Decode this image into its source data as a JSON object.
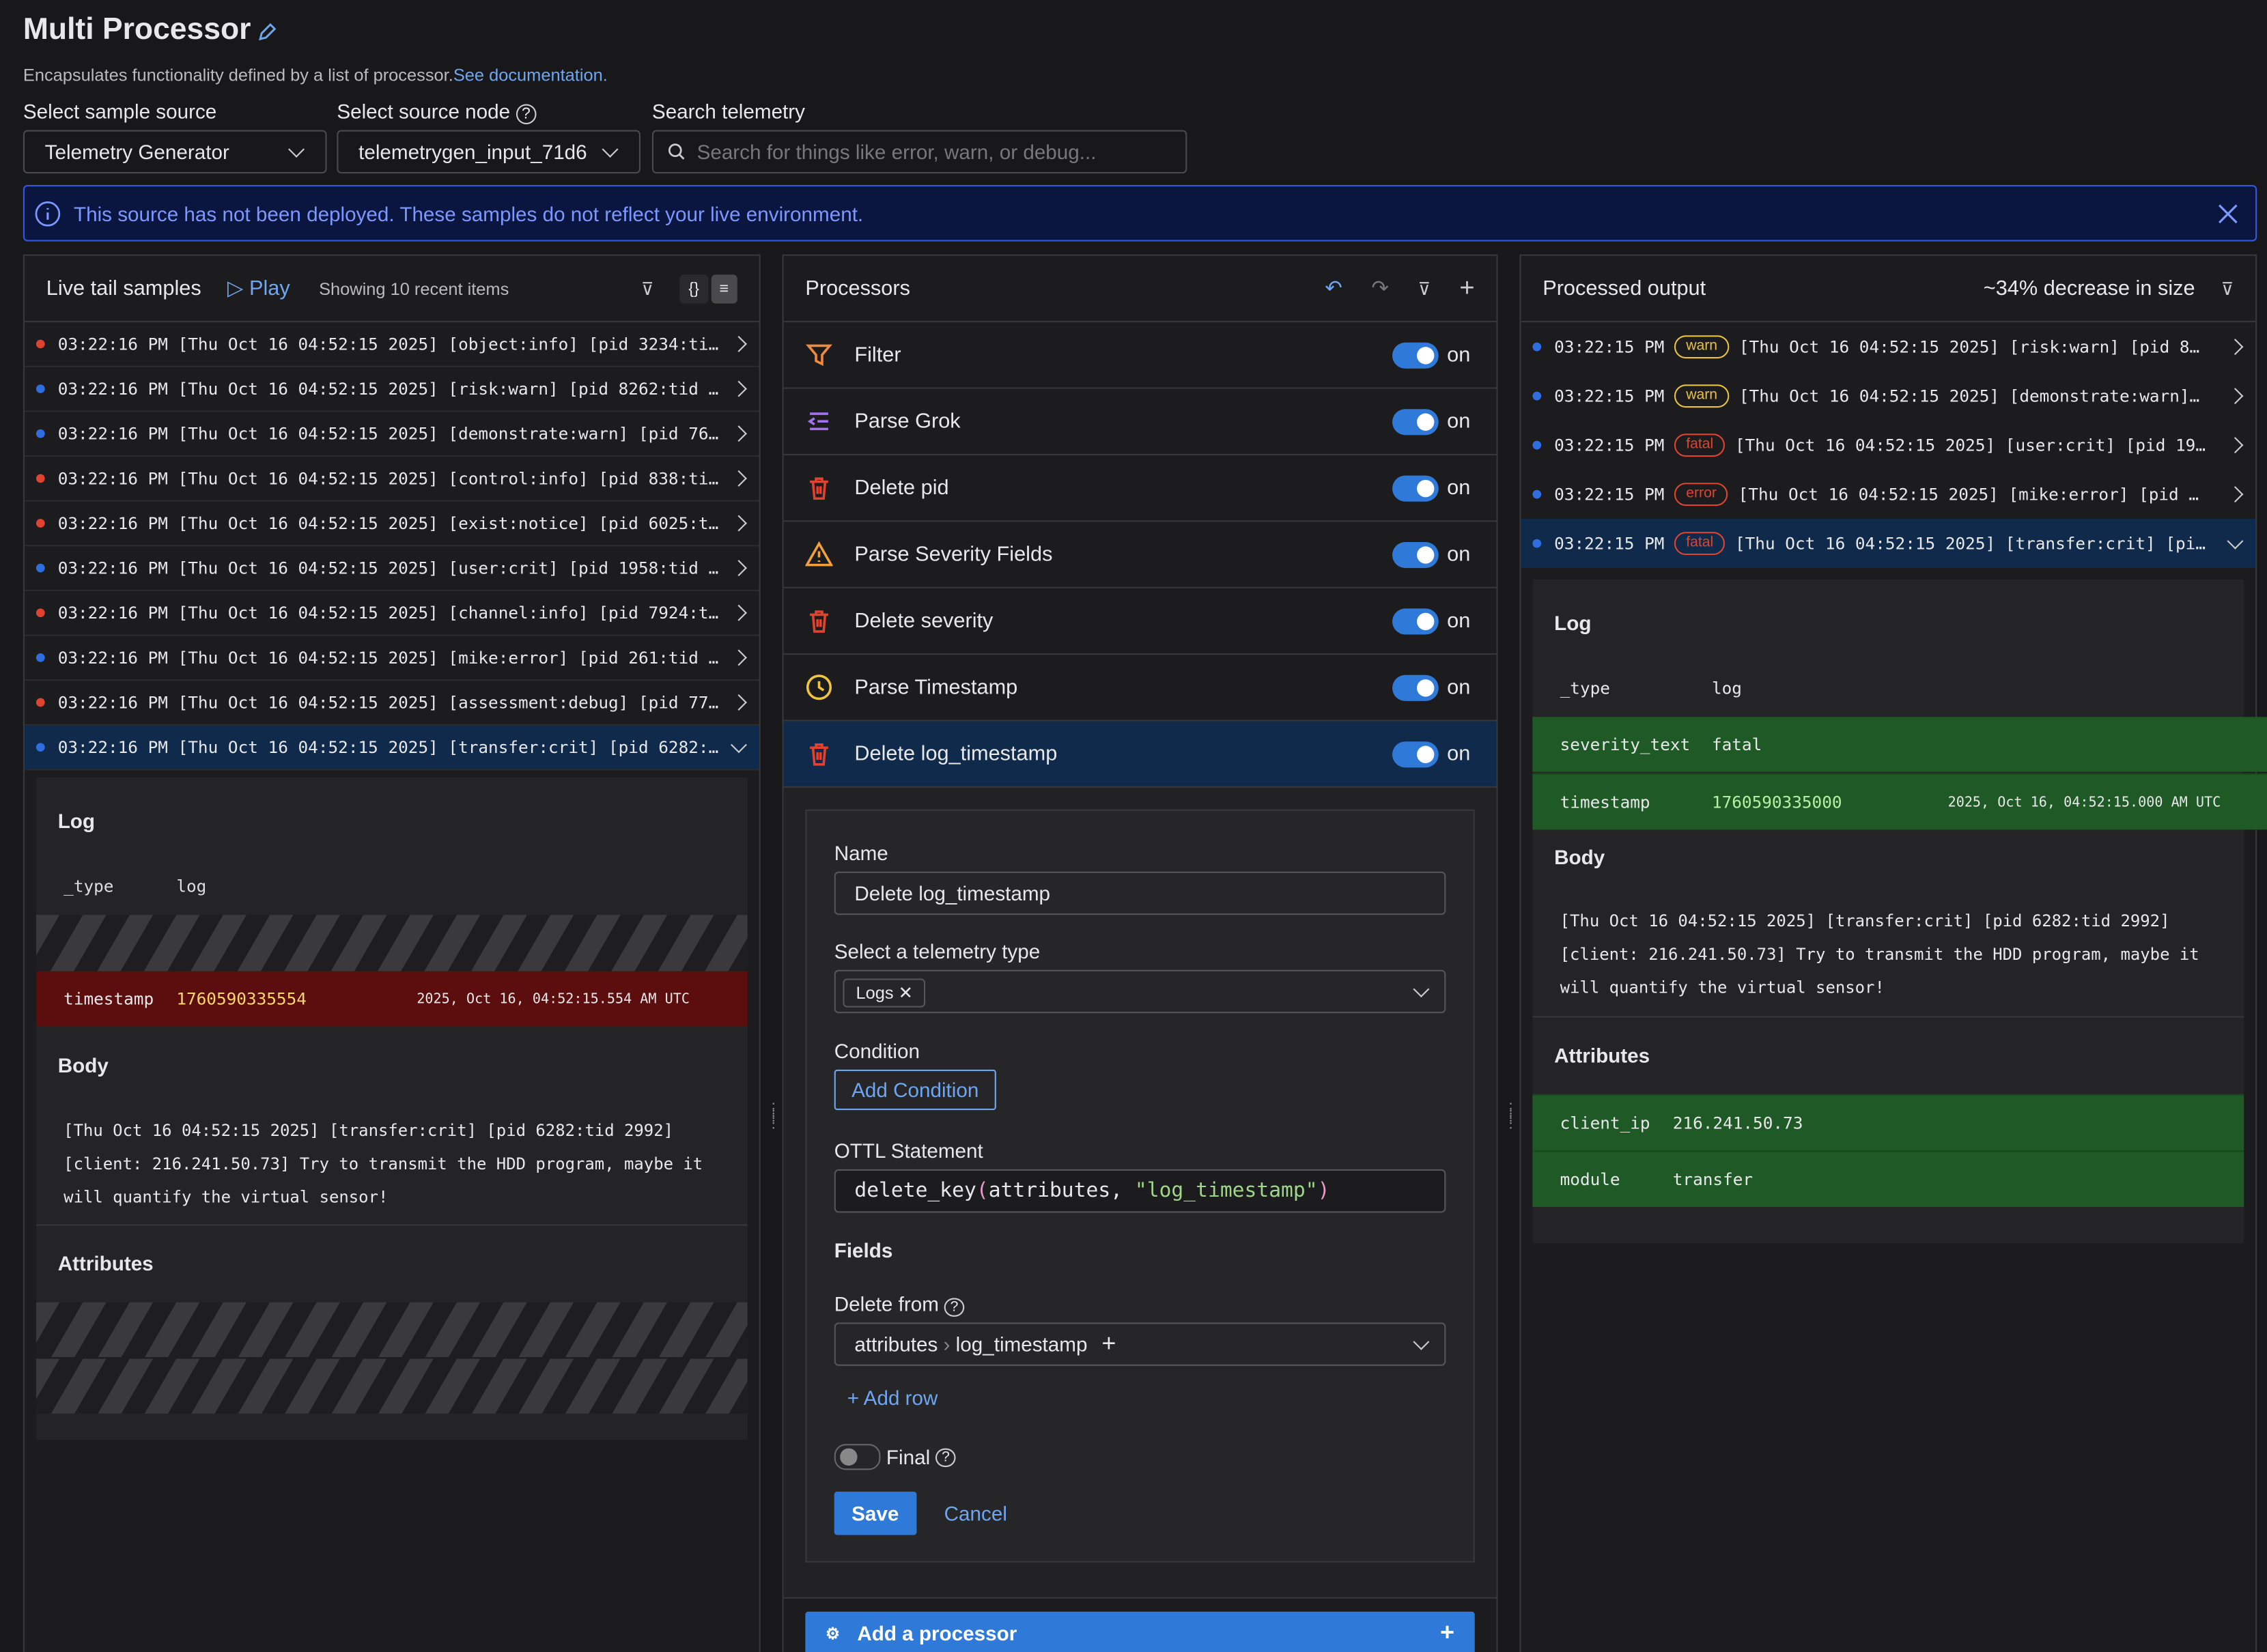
{
  "header": {
    "title": "Multi Processor",
    "description": "Encapsulates functionality defined by a list of processor.",
    "doc_link": "See documentation."
  },
  "controls": {
    "sample_source_label": "Select sample source",
    "sample_source": "Telemetry Generator",
    "source_node_label": "Select source node",
    "source_node": "telemetrygen_input_71d6",
    "search_label": "Search telemetry",
    "search_placeholder": "Search for things like error, warn, or debug..."
  },
  "banner": "This source has not been deployed. These samples do not reflect your live environment.",
  "live_tail": {
    "title": "Live tail samples",
    "play": "Play",
    "count": "Showing 10 recent items",
    "rows": [
      {
        "text": "03:22:16 PM [Thu Oct 16 04:52:15 2025] [object:info] [pid 3234:ti…",
        "dot": "#e0432f"
      },
      {
        "text": "03:22:16 PM [Thu Oct 16 04:52:15 2025] [risk:warn] [pid 8262:tid …",
        "dot": "#2f6ee0"
      },
      {
        "text": "03:22:16 PM [Thu Oct 16 04:52:15 2025] [demonstrate:warn] [pid 76…",
        "dot": "#2f6ee0"
      },
      {
        "text": "03:22:16 PM [Thu Oct 16 04:52:15 2025] [control:info] [pid 838:ti…",
        "dot": "#e0432f"
      },
      {
        "text": "03:22:16 PM [Thu Oct 16 04:52:15 2025] [exist:notice] [pid 6025:t…",
        "dot": "#e0432f"
      },
      {
        "text": "03:22:16 PM [Thu Oct 16 04:52:15 2025] [user:crit] [pid 1958:tid …",
        "dot": "#2f6ee0"
      },
      {
        "text": "03:22:16 PM [Thu Oct 16 04:52:15 2025] [channel:info] [pid 7924:t…",
        "dot": "#e0432f"
      },
      {
        "text": "03:22:16 PM [Thu Oct 16 04:52:15 2025] [mike:error] [pid 261:tid …",
        "dot": "#2f6ee0"
      },
      {
        "text": "03:22:16 PM [Thu Oct 16 04:52:15 2025] [assessment:debug] [pid 77…",
        "dot": "#e0432f"
      },
      {
        "text": "03:22:16 PM [Thu Oct 16 04:52:15 2025] [transfer:crit] [pid 6282:…",
        "dot": "#2f6ee0"
      }
    ],
    "detail": {
      "log_title": "Log",
      "type_key": "_type",
      "type_value": "log",
      "timestamp_key": "timestamp",
      "timestamp_value": "1760590335554",
      "timestamp_date": "2025, Oct 16, 04:52:15.554 AM UTC",
      "body_title": "Body",
      "body": "[Thu Oct 16 04:52:15 2025] [transfer:crit] [pid 6282:tid 2992] [client: 216.241.50.73] Try to transmit the HDD program, maybe it will quantify the virtual sensor!",
      "attributes_title": "Attributes"
    }
  },
  "processors": {
    "title": "Processors",
    "items": [
      {
        "name": "Filter",
        "state": "on",
        "icon": "filter"
      },
      {
        "name": "Parse Grok",
        "state": "on",
        "icon": "grok"
      },
      {
        "name": "Delete pid",
        "state": "on",
        "icon": "trash"
      },
      {
        "name": "Parse Severity Fields",
        "state": "on",
        "icon": "warning"
      },
      {
        "name": "Delete severity",
        "state": "on",
        "icon": "trash"
      },
      {
        "name": "Parse Timestamp",
        "state": "on",
        "icon": "clock"
      },
      {
        "name": "Delete log_timestamp",
        "state": "on",
        "icon": "trash"
      }
    ],
    "form": {
      "name_label": "Name",
      "name_value": "Delete log_timestamp",
      "type_label": "Select a telemetry type",
      "type_chip": "Logs",
      "condition_label": "Condition",
      "add_condition": "Add Condition",
      "ottl_label": "OTTL Statement",
      "ottl_fn": "delete_key",
      "ottl_arg": "attributes, ",
      "ottl_str": "\"log_timestamp\"",
      "fields_label": "Fields",
      "delete_from_label": "Delete from",
      "path": [
        "attributes",
        "log_timestamp"
      ],
      "add_row": "Add row",
      "final_label": "Final",
      "save": "Save",
      "cancel": "Cancel"
    },
    "add_processor": "Add a processor"
  },
  "output": {
    "title": "Processed output",
    "size_change": "~34% decrease in size",
    "rows": [
      {
        "time": "03:22:15 PM",
        "badge": "warn",
        "text": "[Thu Oct 16 04:52:15 2025] [risk:warn] [pid 8…",
        "dot": "#2f6ee0",
        "badge_color": "#e8c23a"
      },
      {
        "time": "03:22:15 PM",
        "badge": "warn",
        "text": "[Thu Oct 16 04:52:15 2025] [demonstrate:warn]…",
        "dot": "#2f6ee0",
        "badge_color": "#e8c23a"
      },
      {
        "time": "03:22:15 PM",
        "badge": "fatal",
        "text": "[Thu Oct 16 04:52:15 2025] [user:crit] [pid 19…",
        "dot": "#2f6ee0",
        "badge_color": "#e0432f"
      },
      {
        "time": "03:22:15 PM",
        "badge": "error",
        "text": "[Thu Oct 16 04:52:15 2025] [mike:error] [pid …",
        "dot": "#2f6ee0",
        "badge_color": "#e0432f"
      },
      {
        "time": "03:22:15 PM",
        "badge": "fatal",
        "text": "[Thu Oct 16 04:52:15 2025] [transfer:crit] [pi…",
        "dot": "#2f6ee0",
        "badge_color": "#e0432f"
      }
    ],
    "detail": {
      "log_title": "Log",
      "type_key": "_type",
      "type_value": "log",
      "severity_key": "severity_text",
      "severity_value": "fatal",
      "timestamp_key": "timestamp",
      "timestamp_value": "1760590335000",
      "timestamp_date": "2025, Oct 16, 04:52:15.000 AM UTC",
      "body_title": "Body",
      "body": "[Thu Oct 16 04:52:15 2025] [transfer:crit] [pid 6282:tid 2992] [client: 216.241.50.73] Try to transmit the HDD program, maybe it will quantify the virtual sensor!",
      "attributes_title": "Attributes",
      "attributes": [
        {
          "key": "client_ip",
          "value": "216.241.50.73"
        },
        {
          "key": "module",
          "value": "transfer"
        }
      ]
    }
  }
}
